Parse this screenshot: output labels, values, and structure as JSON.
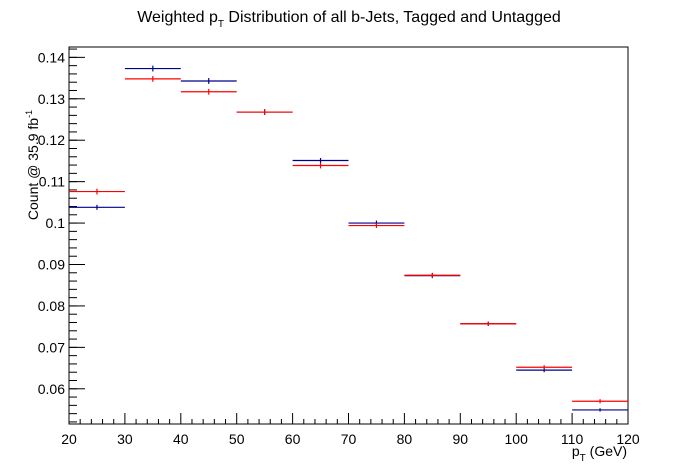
{
  "chart_data": {
    "type": "scatter",
    "title": {
      "pre": "Weighted p",
      "sub": "T",
      "post": " Distribution of all b-Jets, Tagged and Untagged"
    },
    "xlabel": {
      "base": "p",
      "sub": "T",
      "post": " (GeV)"
    },
    "ylabel": {
      "pre": "Count @ 35.9 fb",
      "sup": "-1"
    },
    "xlim": [
      20,
      120
    ],
    "ylim": [
      0.0515,
      0.1425
    ],
    "x_ticks": [
      20,
      30,
      40,
      50,
      60,
      70,
      80,
      90,
      100,
      110,
      120
    ],
    "x_tick_labels": [
      "20",
      "30",
      "40",
      "50",
      "60",
      "70",
      "80",
      "90",
      "100",
      "110",
      "120"
    ],
    "y_ticks": [
      0.06,
      0.07,
      0.08,
      0.09,
      0.1,
      0.11,
      0.12,
      0.13,
      0.14
    ],
    "y_tick_labels": [
      "0.06",
      "0.07",
      "0.08",
      "0.09",
      "0.1",
      "0.11",
      "0.12",
      "0.13",
      "0.14"
    ],
    "grid": false,
    "legend": "none",
    "bin_edges": [
      20,
      30,
      40,
      50,
      60,
      70,
      80,
      90,
      100,
      110,
      120
    ],
    "series": [
      {
        "color": "#00008b",
        "values": [
          0.1038,
          0.1373,
          0.1343,
          0.1268,
          0.1151,
          0.1,
          0.0873,
          0.0757,
          0.0645,
          0.0549
        ],
        "errors": [
          0.0006,
          0.0007,
          0.0007,
          0.0007,
          0.0006,
          0.0006,
          0.0006,
          0.0005,
          0.0005,
          0.0004
        ]
      },
      {
        "color": "#ff0000",
        "values": [
          0.1076,
          0.1348,
          0.1317,
          0.1268,
          0.1139,
          0.0994,
          0.0874,
          0.0757,
          0.0652,
          0.057
        ],
        "errors": [
          0.0007,
          0.0007,
          0.0007,
          0.0007,
          0.0007,
          0.0006,
          0.0006,
          0.0005,
          0.0005,
          0.0005
        ]
      }
    ]
  }
}
